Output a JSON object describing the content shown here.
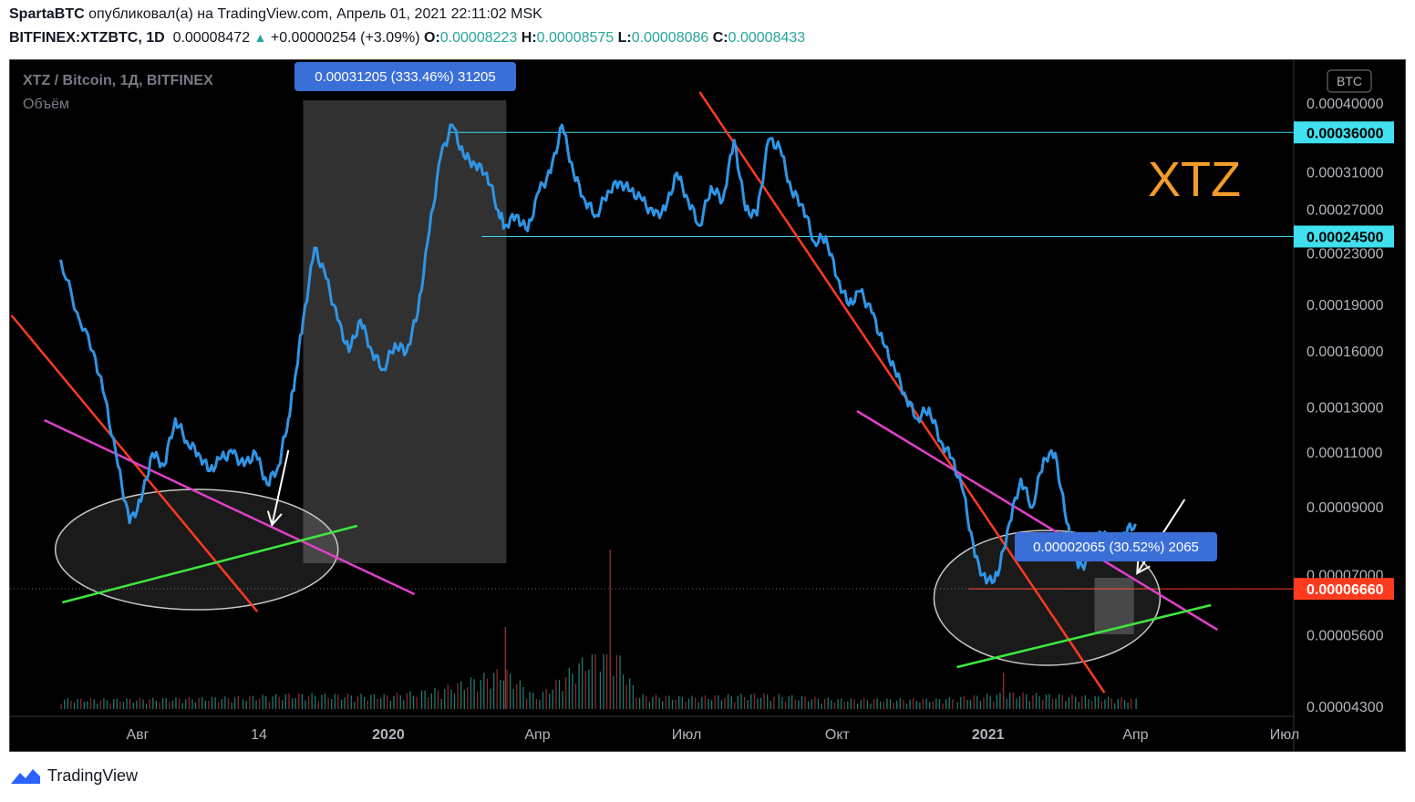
{
  "header": {
    "author": "SpartaBTC",
    "published": "опубликовал(а) на TradingView.com, Апрель 01, 2021 22:11:02 MSK",
    "symbol": "BITFINEX:XTZBTC, 1D",
    "last": "0.00008472",
    "change": "+0.00000254 (+3.09%)",
    "o_label": "O:",
    "o": "0.00008223",
    "h_label": "H:",
    "h": "0.00008575",
    "l_label": "L:",
    "l": "0.00008086",
    "c_label": "C:",
    "c": "0.00008433"
  },
  "legend": {
    "title": "XTZ / Bitcoin, 1Д, BITFINEX",
    "volume": "Объём"
  },
  "annotation_text": "XTZ",
  "footer": {
    "brand": "TradingView"
  },
  "colors": {
    "price_line": "#2f95e6",
    "red_trend": "#ff3b1f",
    "pink_trend": "#e040c8",
    "green_trend": "#3ee83e",
    "level_line": "#3fd7e8",
    "annotation": "#f39c2a",
    "badge": "#3b6fd8"
  },
  "chart_data": {
    "type": "line",
    "title": "XTZ / Bitcoin, 1Д, BITFINEX",
    "currency_badge": "BTC",
    "y_scale": "log",
    "y_ticks": [
      "0.00040000",
      "0.00031000",
      "0.00027000",
      "0.00023000",
      "0.00019000",
      "0.00016000",
      "0.00013000",
      "0.00011000",
      "0.00009000",
      "0.00007000",
      "0.00005600",
      "0.00004300"
    ],
    "y_tick_values": [
      0.0004,
      0.00031,
      0.00027,
      0.00023,
      0.00019,
      0.00016,
      0.00013,
      0.00011,
      9e-05,
      7e-05,
      5.6e-05,
      4.3e-05
    ],
    "x_ticks": [
      "Авг",
      "14",
      "2020",
      "Апр",
      "Июл",
      "Окт",
      "2021",
      "Апр",
      "Июл"
    ],
    "x_tick_dates": [
      "2019-08-01",
      "2019-10-14",
      "2020-01-01",
      "2020-04-01",
      "2020-07-01",
      "2020-10-01",
      "2021-01-01",
      "2021-04-01",
      "2021-07-01"
    ],
    "price_labels": [
      {
        "text": "0.00036000",
        "value": 0.00036,
        "style": "cyan"
      },
      {
        "text": "0.00024500",
        "value": 0.000245,
        "style": "cyan"
      },
      {
        "text": "0.00006660",
        "value": 6.66e-05,
        "style": "red"
      }
    ],
    "measure_labels": [
      "0.00031205 (333.46%) 31205",
      "0.00002065 (30.52%) 2065"
    ],
    "series": [
      {
        "type": "line",
        "x": [
          "2019-06-15",
          "2019-06-25",
          "2019-07-05",
          "2019-07-12",
          "2019-07-20",
          "2019-07-27",
          "2019-08-03",
          "2019-08-10",
          "2019-08-17",
          "2019-08-24",
          "2019-08-31",
          "2019-09-07",
          "2019-09-14",
          "2019-09-21",
          "2019-09-28",
          "2019-10-05",
          "2019-10-12",
          "2019-10-19",
          "2019-10-26",
          "2019-11-01",
          "2019-11-05",
          "2019-11-10",
          "2019-11-17",
          "2019-11-24",
          "2019-12-01",
          "2019-12-08",
          "2019-12-15",
          "2019-12-22",
          "2019-12-29",
          "2020-01-05",
          "2020-01-12",
          "2020-01-19",
          "2020-01-26",
          "2020-02-02",
          "2020-02-09",
          "2020-02-16",
          "2020-02-23",
          "2020-03-01",
          "2020-03-08",
          "2020-03-12",
          "2020-03-19",
          "2020-03-26",
          "2020-04-02",
          "2020-04-09",
          "2020-04-16",
          "2020-04-23",
          "2020-04-30",
          "2020-05-07",
          "2020-05-14",
          "2020-05-21",
          "2020-05-28",
          "2020-06-04",
          "2020-06-11",
          "2020-06-18",
          "2020-06-25",
          "2020-07-02",
          "2020-07-09",
          "2020-07-16",
          "2020-07-23",
          "2020-07-30",
          "2020-08-06",
          "2020-08-13",
          "2020-08-20",
          "2020-08-27",
          "2020-09-03",
          "2020-09-10",
          "2020-09-17",
          "2020-09-24",
          "2020-10-01",
          "2020-10-08",
          "2020-10-15",
          "2020-10-22",
          "2020-10-29",
          "2020-11-05",
          "2020-11-12",
          "2020-11-19",
          "2020-11-26",
          "2020-12-03",
          "2020-12-10",
          "2020-12-17",
          "2020-12-24",
          "2020-12-31",
          "2021-01-07",
          "2021-01-14",
          "2021-01-21",
          "2021-01-28",
          "2021-02-04",
          "2021-02-11",
          "2021-02-18",
          "2021-02-25",
          "2021-03-04",
          "2021-03-11",
          "2021-03-18",
          "2021-03-25",
          "2021-04-01"
        ],
        "y": [
          0.000225,
          0.000185,
          0.00016,
          0.000135,
          0.000105,
          8.5e-05,
          9.2e-05,
          0.00011,
          0.000105,
          0.000125,
          0.000115,
          0.00011,
          0.000103,
          0.000108,
          0.00011,
          0.000105,
          0.00011,
          9.8e-05,
          0.000105,
          0.000125,
          0.000145,
          0.00018,
          0.000235,
          0.00021,
          0.00018,
          0.00016,
          0.00018,
          0.00016,
          0.00015,
          0.000165,
          0.00016,
          0.000185,
          0.00025,
          0.00033,
          0.00037,
          0.00033,
          0.00032,
          0.00031,
          0.00027,
          0.000255,
          0.000265,
          0.00025,
          0.00029,
          0.00031,
          0.00037,
          0.00031,
          0.00028,
          0.000265,
          0.00029,
          0.0003,
          0.00029,
          0.00028,
          0.000265,
          0.00027,
          0.00031,
          0.00028,
          0.000255,
          0.000295,
          0.00028,
          0.00035,
          0.00027,
          0.000265,
          0.00035,
          0.00034,
          0.00029,
          0.000275,
          0.00024,
          0.000245,
          0.00021,
          0.00019,
          0.0002,
          0.000185,
          0.000165,
          0.00015,
          0.000135,
          0.000125,
          0.00013,
          0.000115,
          0.000108,
          9.5e-05,
          7.5e-05,
          6.8e-05,
          7e-05,
          8.5e-05,
          0.0001,
          9e-05,
          0.000108,
          0.00011,
          8.5e-05,
          7.2e-05,
          7.4e-05,
          8.2e-05,
          7.8e-05,
          8.2e-05,
          8.47e-05
        ]
      }
    ],
    "volume_series": {
      "x": [
        "2019-06-15",
        "2019-08-01",
        "2019-10-01",
        "2019-11-05",
        "2020-01-01",
        "2020-02-01",
        "2020-03-12",
        "2020-04-01",
        "2020-05-15",
        "2020-06-01",
        "2020-07-01",
        "2020-08-15",
        "2020-10-01",
        "2020-12-01",
        "2021-01-15",
        "2021-03-01",
        "2021-04-01"
      ],
      "y": [
        1,
        1,
        1.2,
        1.5,
        1.4,
        2,
        4,
        1.2,
        7,
        1.4,
        1.2,
        1.5,
        1,
        1,
        1.6,
        1.3,
        1
      ]
    }
  }
}
